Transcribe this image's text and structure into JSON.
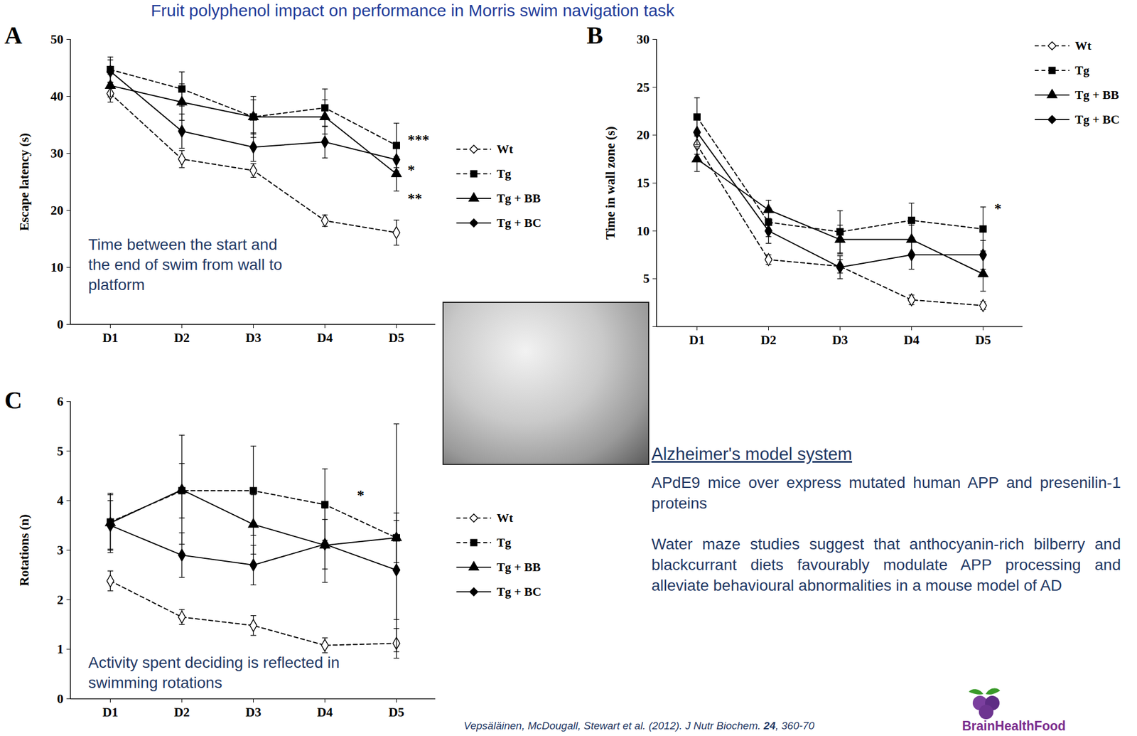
{
  "title": "Fruit polyphenol impact on performance in Morris swim navigation task",
  "chart_data": [
    {
      "type": "line",
      "panel": "A",
      "ylabel": "Escape latency (s)",
      "note": "Time between the start and the end of swim from wall to platform",
      "categories": [
        "D1",
        "D2",
        "D3",
        "D4",
        "D5"
      ],
      "ylim": [
        0,
        50
      ],
      "yticks": [
        0,
        10,
        20,
        30,
        40,
        50
      ],
      "grid": false,
      "legend": "right",
      "series": [
        {
          "name": "Wt",
          "color": "#000000",
          "marker": "open_diamond",
          "line_style": "dashed",
          "values": [
            40.5,
            29.0,
            27.0,
            18.2,
            16.1
          ],
          "errors": [
            1.5,
            1.5,
            1.2,
            1.0,
            2.2
          ]
        },
        {
          "name": "Tg",
          "color": "#000000",
          "marker": "square",
          "line_style": "dashed",
          "values": [
            44.7,
            41.3,
            36.4,
            38.0,
            31.4
          ],
          "errors": [
            2.2,
            3.0,
            3.6,
            3.3,
            3.9
          ]
        },
        {
          "name": "Tg + BB",
          "color": "#000000",
          "marker": "triangle",
          "line_style": "solid",
          "values": [
            41.9,
            39.0,
            36.4,
            36.4,
            26.4
          ],
          "errors": [
            2.0,
            3.2,
            3.0,
            3.0,
            3.0
          ]
        },
        {
          "name": "Tg + BC",
          "color": "#000000",
          "marker": "diamond",
          "line_style": "solid",
          "values": [
            44.4,
            33.9,
            31.1,
            32.0,
            28.9
          ],
          "errors": [
            2.0,
            3.0,
            2.5,
            2.8,
            2.0
          ]
        }
      ],
      "annotations": [
        {
          "text": "***",
          "x": "D5",
          "y": 32.3
        },
        {
          "text": "*",
          "x": "D5",
          "y": 27.0
        },
        {
          "text": "**",
          "x": "D5",
          "y": 22.0
        }
      ]
    },
    {
      "type": "line",
      "panel": "B",
      "ylabel": "Time in wall zone (s)",
      "categories": [
        "D1",
        "D2",
        "D3",
        "D4",
        "D5"
      ],
      "ylim": [
        0,
        30
      ],
      "yticks": [
        0,
        5,
        10,
        15,
        20,
        25,
        30
      ],
      "grid": false,
      "legend": "right",
      "series": [
        {
          "name": "Wt",
          "color": "#000000",
          "marker": "open_diamond",
          "line_style": "dashed",
          "values": [
            19.0,
            7.0,
            6.3,
            2.8,
            2.2
          ],
          "errors": [
            1.0,
            0.5,
            0.7,
            0.5,
            0.4
          ]
        },
        {
          "name": "Tg",
          "color": "#000000",
          "marker": "square",
          "line_style": "dashed",
          "values": [
            21.9,
            10.9,
            9.9,
            11.1,
            10.2
          ],
          "errors": [
            2.0,
            1.5,
            2.2,
            1.8,
            2.3
          ]
        },
        {
          "name": "Tg + BB",
          "color": "#000000",
          "marker": "triangle",
          "line_style": "solid",
          "values": [
            17.5,
            12.2,
            9.1,
            9.1,
            5.5
          ],
          "errors": [
            1.3,
            1.0,
            1.5,
            1.5,
            1.8
          ]
        },
        {
          "name": "Tg + BC",
          "color": "#000000",
          "marker": "diamond",
          "line_style": "solid",
          "values": [
            20.3,
            10.0,
            6.2,
            7.5,
            7.5
          ],
          "errors": [
            1.3,
            1.3,
            1.2,
            1.5,
            1.5
          ]
        }
      ],
      "annotations": [
        {
          "text": "*",
          "x": "D5",
          "y": 12.3
        }
      ]
    },
    {
      "type": "line",
      "panel": "C",
      "ylabel": "Rotations (n)",
      "note": "Activity spent deciding is reflected in swimming rotations",
      "categories": [
        "D1",
        "D2",
        "D3",
        "D4",
        "D5"
      ],
      "ylim": [
        0,
        6
      ],
      "yticks": [
        0,
        1,
        2,
        3,
        4,
        5,
        6
      ],
      "grid": false,
      "legend": "right",
      "series": [
        {
          "name": "Wt",
          "color": "#000000",
          "marker": "open_diamond",
          "line_style": "dashed",
          "values": [
            2.38,
            1.65,
            1.48,
            1.08,
            1.12
          ],
          "errors": [
            0.2,
            0.15,
            0.2,
            0.15,
            0.3
          ]
        },
        {
          "name": "Tg",
          "color": "#000000",
          "marker": "square",
          "line_style": "dashed",
          "values": [
            3.57,
            4.2,
            4.2,
            3.92,
            3.25
          ],
          "errors": [
            0.55,
            0.55,
            0.9,
            0.72,
            0.5
          ]
        },
        {
          "name": "Tg + BB",
          "color": "#000000",
          "marker": "triangle",
          "line_style": "solid",
          "values": [
            3.55,
            4.22,
            3.52,
            3.1,
            3.25
          ],
          "errors": [
            0.6,
            1.1,
            0.6,
            0.75,
            2.3
          ]
        },
        {
          "name": "Tg + BC",
          "color": "#000000",
          "marker": "diamond",
          "line_style": "solid",
          "values": [
            3.5,
            2.9,
            2.7,
            3.12,
            2.6
          ],
          "errors": [
            0.5,
            0.45,
            0.4,
            0.5,
            1.0
          ]
        }
      ],
      "annotations": [
        {
          "text": "*",
          "x": "D4",
          "y": 4.1
        }
      ]
    }
  ],
  "model_heading": "Alzheimer's model system",
  "model_paragraphs": [
    "APdE9 mice over express mutated human APP and presenilin-1 proteins",
    "Water maze studies suggest that anthocyanin-rich bilberry and blackcurrant diets favourably modulate APP processing and alleviate behavioural abnormalities in a mouse model of AD"
  ],
  "citation": [
    "Vepsäläinen, McDougall, Stewart et al. (2012). J Nutr Biochem. ",
    "24",
    ", 360-70"
  ],
  "logo": "BrainHealthFood"
}
